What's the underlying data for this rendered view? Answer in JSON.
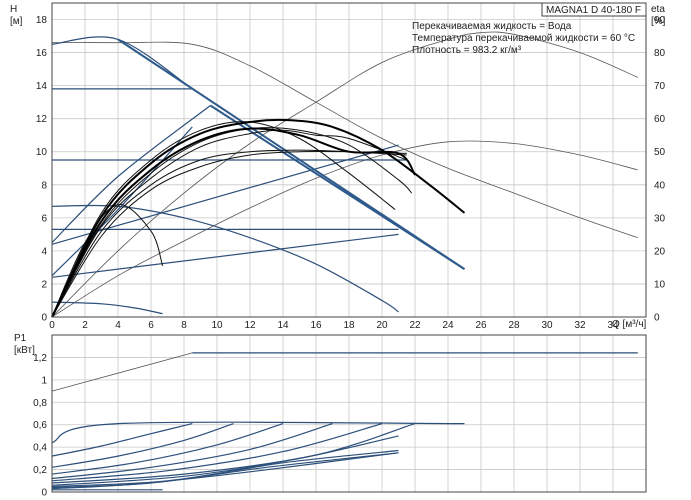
{
  "header": {
    "model": "MAGNA1 D 40-180 F",
    "info_lines": [
      "Перекачиваемая жидкость = Вода",
      "Температура перекачиваемой жидкости = 60 °C",
      "Плотность = 983.2 кг/м³"
    ]
  },
  "chart_data": [
    {
      "type": "line",
      "ylabel": "H",
      "yunit": "[м]",
      "y2label": "eta",
      "y2unit": "[%]",
      "xlabel": "Q [м³/ч]",
      "xlim": [
        0,
        36
      ],
      "ylim": [
        0,
        19
      ],
      "y2lim": [
        0,
        95
      ],
      "xticks": [
        0,
        2,
        4,
        6,
        8,
        10,
        12,
        14,
        16,
        18,
        20,
        22,
        24,
        26,
        28,
        30,
        32,
        34
      ],
      "yticks": [
        0,
        2,
        4,
        6,
        8,
        10,
        12,
        14,
        16,
        18
      ],
      "y2ticks": [
        0,
        10,
        20,
        30,
        40,
        50,
        60,
        70,
        80,
        90
      ],
      "grid": true,
      "series": [
        {
          "style": "grey",
          "x": [
            0,
            4,
            8.5,
            12,
            16,
            20,
            24,
            28,
            32,
            35.5
          ],
          "y": [
            16.6,
            16.6,
            16.5,
            15.2,
            13,
            10.8,
            9,
            7.5,
            6,
            4.8
          ]
        },
        {
          "style": "grey",
          "x": [
            0,
            4,
            8,
            12,
            16,
            20,
            24,
            26,
            28,
            32,
            35.5
          ],
          "y": [
            0,
            4,
            7.5,
            10.5,
            13,
            15.4,
            16.8,
            17.2,
            17.1,
            16,
            14.5
          ]
        },
        {
          "style": "grey",
          "x": [
            0,
            4,
            8,
            12,
            16,
            20,
            24,
            28,
            32,
            35.5
          ],
          "y": [
            0,
            2.5,
            4.6,
            6.6,
            8.4,
            9.8,
            10.6,
            10.5,
            9.8,
            8.9
          ]
        },
        {
          "style": "blue",
          "x": [
            0,
            4,
            8,
            12,
            16,
            20,
            21
          ],
          "y": [
            6.7,
            6.7,
            6.0,
            4.8,
            3.2,
            1.0,
            0.3
          ]
        },
        {
          "style": "blue",
          "x": [
            0,
            3,
            5,
            6.7
          ],
          "y": [
            0.9,
            0.8,
            0.55,
            0.2
          ]
        },
        {
          "style": "blue",
          "x": [
            0,
            4,
            8.5
          ],
          "y": [
            2.5,
            6.5,
            11.5
          ]
        },
        {
          "style": "blue",
          "x": [
            0,
            4,
            9.6
          ],
          "y": [
            4.5,
            8.5,
            12.8
          ]
        },
        {
          "style": "blue",
          "x": [
            0,
            21
          ],
          "y": [
            2.4,
            5.0
          ]
        },
        {
          "style": "blue",
          "x": [
            0,
            21
          ],
          "y": [
            4.4,
            10.4
          ]
        },
        {
          "style": "blue",
          "x": [
            0,
            21
          ],
          "y": [
            5.3,
            5.3
          ]
        },
        {
          "style": "blue",
          "x": [
            0,
            21.5
          ],
          "y": [
            9.5,
            9.5
          ]
        },
        {
          "style": "blue",
          "x": [
            0,
            8.5
          ],
          "y": [
            13.8,
            13.8
          ]
        },
        {
          "style": "blue",
          "x": [
            0,
            4,
            8.5
          ],
          "y": [
            16.5,
            16.8,
            13.8
          ]
        },
        {
          "style": "blue-bold",
          "x": [
            4,
            25
          ],
          "y": [
            16.8,
            2.9
          ]
        },
        {
          "style": "blue-bold",
          "x": [
            9.6,
            25
          ],
          "y": [
            12.8,
            2.9
          ]
        },
        {
          "style": "black",
          "x": [
            0,
            2,
            4,
            6,
            6.7
          ],
          "y": [
            0,
            4.5,
            6.8,
            5.2,
            3.1
          ]
        },
        {
          "style": "black",
          "x": [
            0,
            3,
            6,
            9,
            12,
            15,
            18,
            20.8
          ],
          "y": [
            0,
            6.3,
            9.5,
            11.3,
            11.8,
            10.8,
            8.7,
            6.5
          ]
        },
        {
          "style": "black",
          "x": [
            0,
            3,
            6,
            9,
            12,
            15,
            18,
            21,
            21.8
          ],
          "y": [
            0,
            5.6,
            8.7,
            10.6,
            11.4,
            11.3,
            10.4,
            8.3,
            7.5
          ]
        },
        {
          "style": "black",
          "x": [
            0,
            3,
            6,
            9,
            12,
            14,
            16,
            18,
            21.5
          ],
          "y": [
            0,
            5.5,
            8.4,
            10.3,
            11.1,
            11.3,
            11.0,
            10.8,
            9.5
          ]
        },
        {
          "style": "black",
          "x": [
            0,
            3,
            6,
            9,
            12,
            15,
            18,
            21.5
          ],
          "y": [
            0,
            5.2,
            8.0,
            9.5,
            10.0,
            10.1,
            10.0,
            9.8
          ]
        },
        {
          "style": "black",
          "x": [
            0,
            3,
            6,
            9,
            12,
            15,
            18,
            21.5
          ],
          "y": [
            0,
            4.9,
            7.7,
            9.1,
            9.8,
            10.0,
            10.0,
            9.9
          ]
        },
        {
          "style": "black-bold",
          "x": [
            0,
            3,
            6,
            9,
            12,
            14.5,
            17,
            20,
            23,
            25
          ],
          "y": [
            0,
            6.1,
            9.3,
            11.1,
            11.8,
            11.9,
            11.5,
            10.1,
            7.9,
            6.3
          ]
        },
        {
          "style": "black-bold",
          "x": [
            0,
            3,
            6,
            9,
            12,
            15,
            18,
            21,
            22
          ],
          "y": [
            0,
            5.8,
            8.9,
            10.7,
            11.4,
            11.0,
            10.0,
            9.9,
            8.6
          ]
        }
      ]
    },
    {
      "type": "line",
      "ylabel": "P1",
      "yunit": "[кВт]",
      "xlim": [
        0,
        36
      ],
      "ylim": [
        0,
        1.4
      ],
      "yticks": [
        0,
        0.2,
        0.4,
        0.6,
        0.8,
        1.0,
        1.2
      ],
      "yticklabels": [
        "0",
        "0,2",
        "0,4",
        "0,6",
        "0,8",
        "1",
        "1,2"
      ],
      "grid": true,
      "series": [
        {
          "style": "grey",
          "x": [
            0,
            8.5
          ],
          "y": [
            0.9,
            1.24
          ]
        },
        {
          "style": "blue",
          "x": [
            8.5,
            35.5
          ],
          "y": [
            1.24,
            1.24
          ]
        },
        {
          "style": "blue",
          "x": [
            0,
            4,
            25
          ],
          "y": [
            0.44,
            0.61,
            0.61
          ]
        },
        {
          "style": "blue",
          "x": [
            0,
            3,
            6,
            8.5
          ],
          "y": [
            0.32,
            0.41,
            0.52,
            0.61
          ]
        },
        {
          "style": "blue",
          "x": [
            0,
            4,
            8,
            11
          ],
          "y": [
            0.22,
            0.32,
            0.46,
            0.61
          ]
        },
        {
          "style": "blue",
          "x": [
            0,
            5,
            10,
            14
          ],
          "y": [
            0.16,
            0.26,
            0.42,
            0.61
          ]
        },
        {
          "style": "blue",
          "x": [
            0,
            6,
            12,
            17
          ],
          "y": [
            0.12,
            0.22,
            0.38,
            0.61
          ]
        },
        {
          "style": "blue",
          "x": [
            0,
            7,
            14,
            20
          ],
          "y": [
            0.1,
            0.19,
            0.36,
            0.61
          ]
        },
        {
          "style": "blue",
          "x": [
            0,
            8,
            16,
            22
          ],
          "y": [
            0.08,
            0.16,
            0.33,
            0.61
          ]
        },
        {
          "style": "blue",
          "x": [
            0,
            8,
            15,
            21
          ],
          "y": [
            0.06,
            0.14,
            0.3,
            0.5
          ]
        },
        {
          "style": "blue",
          "x": [
            0,
            7,
            14,
            21
          ],
          "y": [
            0.05,
            0.1,
            0.26,
            0.37
          ]
        },
        {
          "style": "blue",
          "x": [
            0,
            6,
            13,
            21
          ],
          "y": [
            0.04,
            0.08,
            0.22,
            0.35
          ]
        },
        {
          "style": "blue",
          "x": [
            0,
            5,
            12,
            21
          ],
          "y": [
            0.03,
            0.07,
            0.18,
            0.35
          ]
        },
        {
          "style": "blue",
          "x": [
            0,
            6.7
          ],
          "y": [
            0.02,
            0.02
          ]
        }
      ]
    }
  ]
}
